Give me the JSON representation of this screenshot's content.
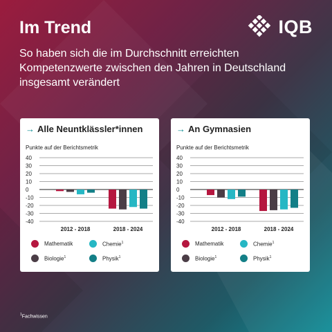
{
  "header": {
    "title": "Im Trend",
    "subtitle": "So haben sich die im Durchschnitt erreichten Kompetenzwerte zwischen den Jahren in Deutschland insgesamt verändert",
    "logo_text": "IQB"
  },
  "colors": {
    "Mathematik": "#b5173f",
    "Chemie": "#26b7c4",
    "Biologie": "#4b3d46",
    "Physik": "#137f87"
  },
  "legend": [
    {
      "name": "Mathematik",
      "sup": ""
    },
    {
      "name": "Chemie",
      "sup": "1"
    },
    {
      "name": "Biologie",
      "sup": "1"
    },
    {
      "name": "Physik",
      "sup": "1"
    }
  ],
  "chart_data": [
    {
      "type": "bar",
      "title": "Alle Neuntklässler*innen",
      "ylabel": "Punkte auf der Berichtsmetrik",
      "categories": [
        "2012 - 2018",
        "2018 - 2024"
      ],
      "yticks": [
        40,
        30,
        20,
        10,
        0,
        -10,
        -20,
        -30,
        -40
      ],
      "ylim": [
        -40,
        40
      ],
      "series": [
        {
          "name": "Mathematik",
          "values": [
            -2,
            -24
          ]
        },
        {
          "name": "Biologie",
          "values": [
            -3,
            -25
          ]
        },
        {
          "name": "Chemie",
          "values": [
            -6,
            -22
          ]
        },
        {
          "name": "Physik",
          "values": [
            -4,
            -24
          ]
        }
      ]
    },
    {
      "type": "bar",
      "title": "An Gymnasien",
      "ylabel": "Punkte auf der Berichtsmetrik",
      "categories": [
        "2012 - 2018",
        "2018 - 2024"
      ],
      "yticks": [
        40,
        30,
        20,
        10,
        0,
        -10,
        -20,
        -30,
        -40
      ],
      "ylim": [
        -40,
        40
      ],
      "series": [
        {
          "name": "Mathematik",
          "values": [
            -7,
            -27
          ]
        },
        {
          "name": "Biologie",
          "values": [
            -10,
            -26
          ]
        },
        {
          "name": "Chemie",
          "values": [
            -12,
            -25
          ]
        },
        {
          "name": "Physik",
          "values": [
            -9,
            -23
          ]
        }
      ]
    }
  ],
  "footnote": {
    "sup": "1",
    "text": "Fachwissen"
  }
}
